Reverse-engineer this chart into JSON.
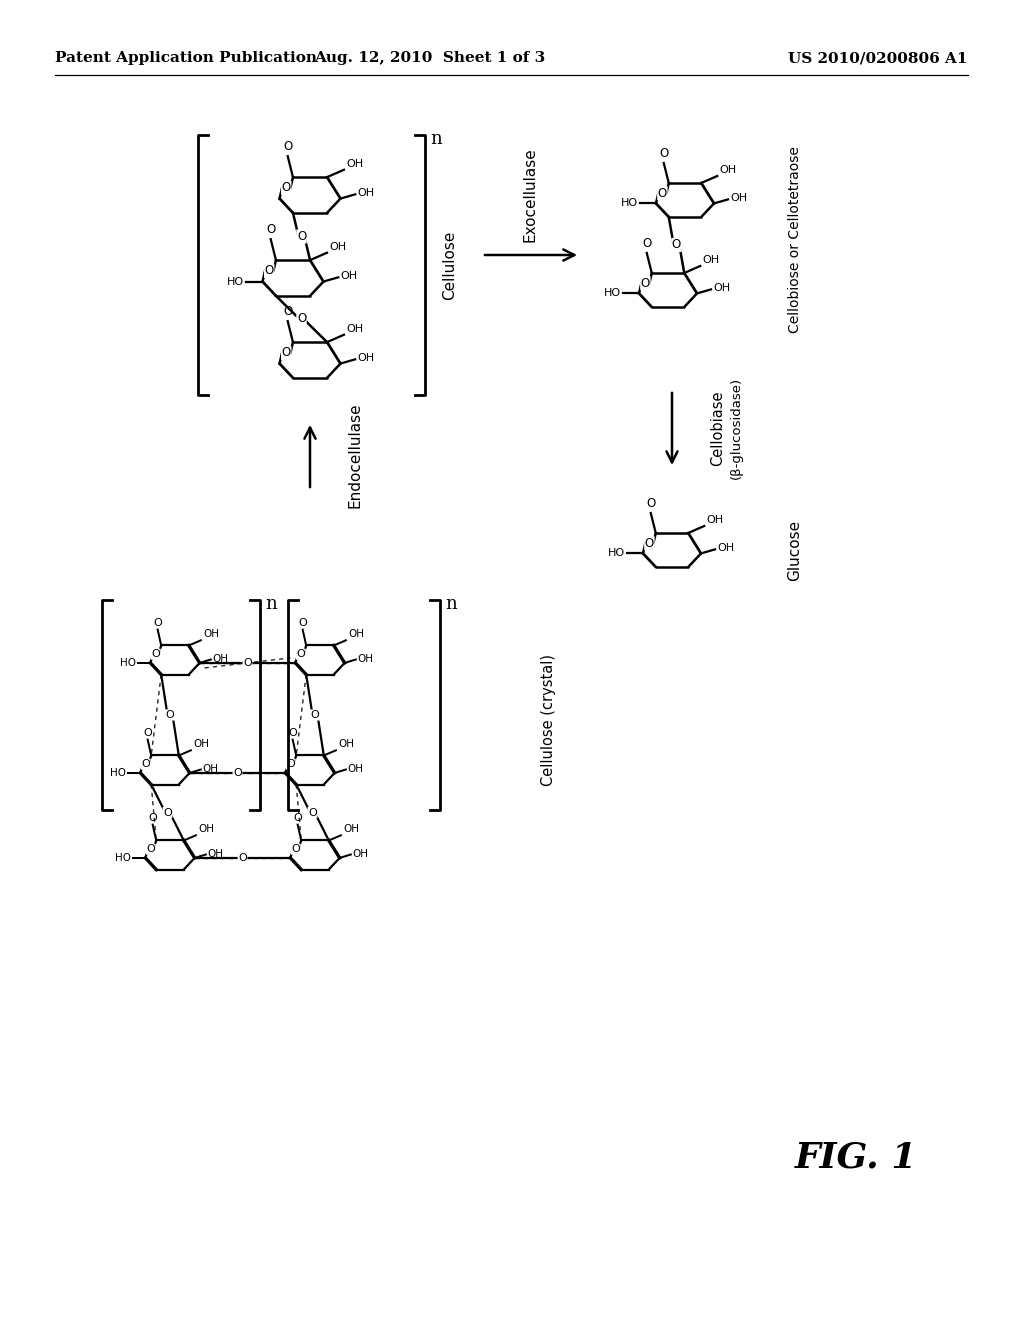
{
  "header_left": "Patent Application Publication",
  "header_center": "Aug. 12, 2010  Sheet 1 of 3",
  "header_right": "US 2010/0200806 A1",
  "fig_label": "FIG. 1",
  "background_color": "#ffffff",
  "text_color": "#000000",
  "header_fontsize": 11,
  "cellulose_label": "Cellulose",
  "exo_label": "Exocellulase",
  "endo_label": "Endocellulase",
  "cellobiase_label1": "Cellobiase",
  "cellobiase_label2": "(β-glucosidase)",
  "cellobiose_label": "Cellobiose or Cellotetraose",
  "glucose_label": "Glucose",
  "crystal_label": "Cellulose (crystal)"
}
